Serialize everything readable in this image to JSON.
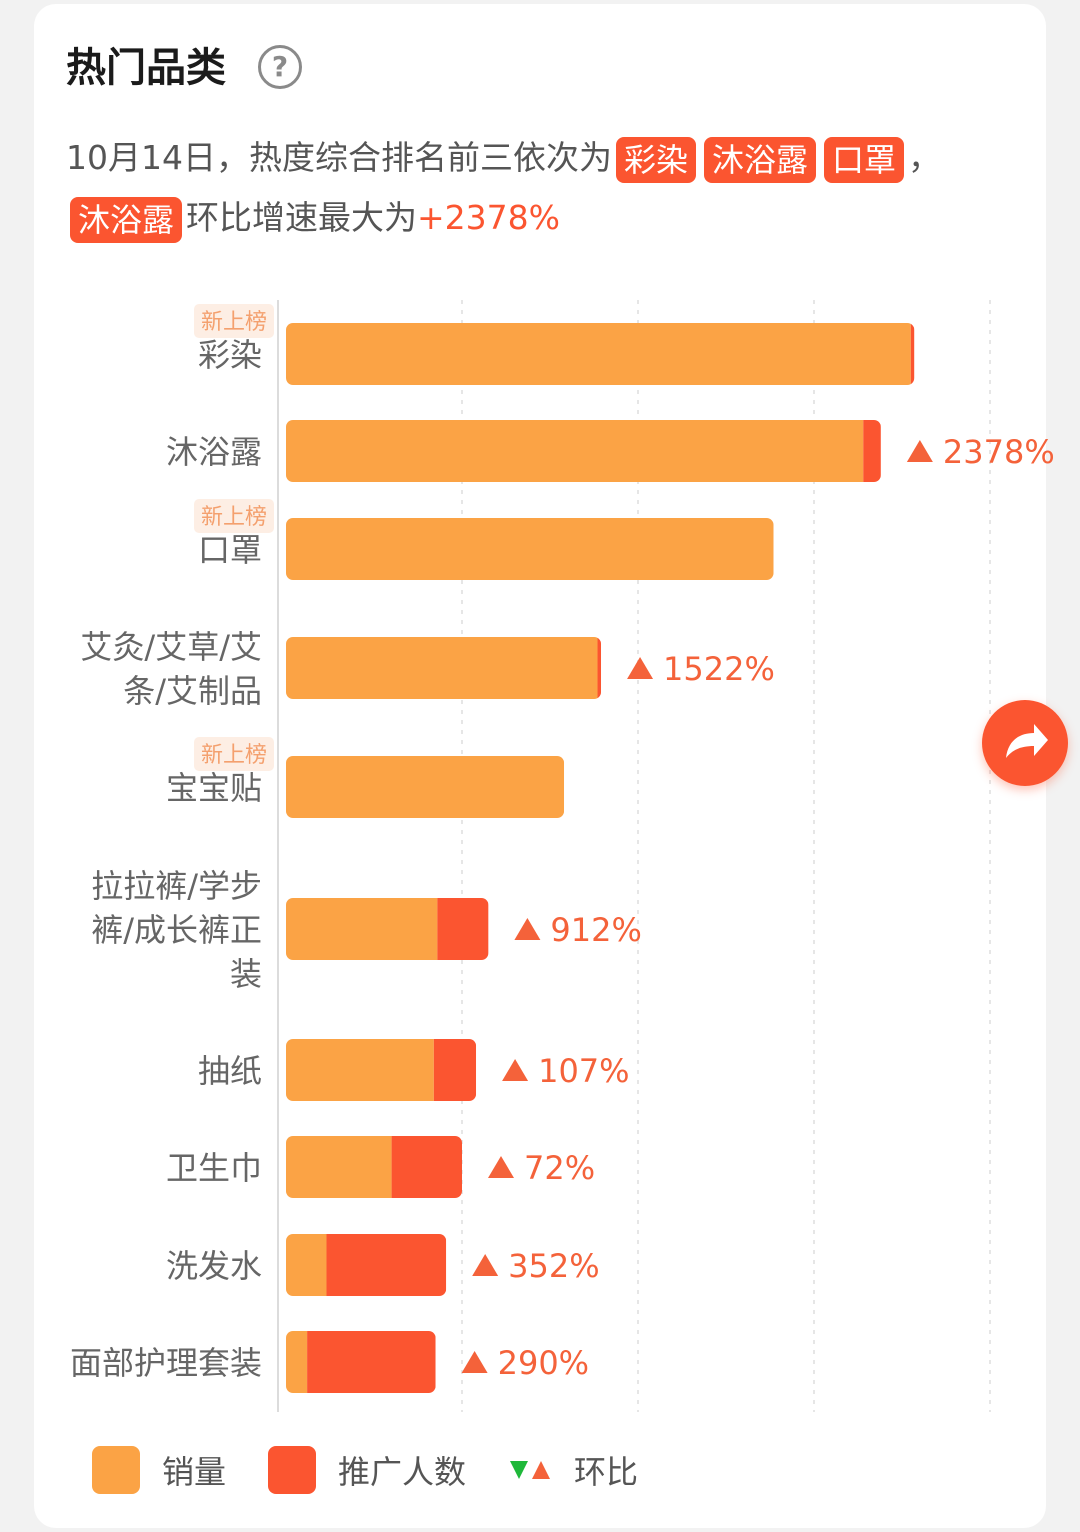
{
  "header": {
    "title": "热门品类",
    "help_icon": "question-circle-icon"
  },
  "summary": {
    "prefix": "10月14日，热度综合排名前三依次为",
    "top3": [
      "彩染",
      "沐浴露",
      "口罩"
    ],
    "comma": "，",
    "fastest_category": "沐浴露",
    "fastest_text": "环比增速最大为",
    "fastest_value": "+2378%"
  },
  "colors": {
    "sales": "#fba345",
    "promoters": "#fb5530",
    "mom_up": "#f4623a",
    "mom_down": "#1fb83a"
  },
  "chart_data": {
    "type": "bar",
    "orientation": "horizontal",
    "stacked": true,
    "grid": true,
    "legend_position": "bottom",
    "categories": [
      "彩染",
      "沐浴露",
      "口罩",
      "艾灸/艾草/艾条/艾制品",
      "宝宝贴",
      "拉拉裤/学步裤/成长裤正装",
      "抽纸",
      "卫生巾",
      "洗发水",
      "面部护理套装"
    ],
    "category_lines": [
      [
        "彩染"
      ],
      [
        "沐浴露"
      ],
      [
        "口罩"
      ],
      [
        "艾灸/艾草/艾",
        "条/艾制品"
      ],
      [
        "宝宝贴"
      ],
      [
        "拉拉裤/学步",
        "裤/成长裤正",
        "装"
      ],
      [
        "抽纸"
      ],
      [
        "卫生巾"
      ],
      [
        "洗发水"
      ],
      [
        "面部护理套装"
      ]
    ],
    "new_badge": [
      true,
      false,
      true,
      false,
      true,
      false,
      false,
      false,
      false,
      false
    ],
    "new_badge_label": "新上榜",
    "series": [
      {
        "name": "销量",
        "values": [
          3.55,
          3.28,
          2.77,
          1.77,
          1.58,
          0.86,
          0.84,
          0.6,
          0.23,
          0.12
        ]
      },
      {
        "name": "推广人数",
        "values": [
          0.02,
          0.1,
          0.0,
          0.02,
          0.0,
          0.29,
          0.24,
          0.4,
          0.68,
          0.73
        ]
      }
    ],
    "mom_change": [
      "",
      "2378%",
      "",
      "1522%",
      "",
      "912%",
      "107%",
      "72%",
      "352%",
      "290%"
    ],
    "mom_direction": [
      "",
      "up",
      "",
      "up",
      "",
      "up",
      "up",
      "up",
      "up",
      "up"
    ],
    "xlim": [
      0,
      4
    ],
    "legend": [
      "销量",
      "推广人数",
      "环比"
    ]
  }
}
